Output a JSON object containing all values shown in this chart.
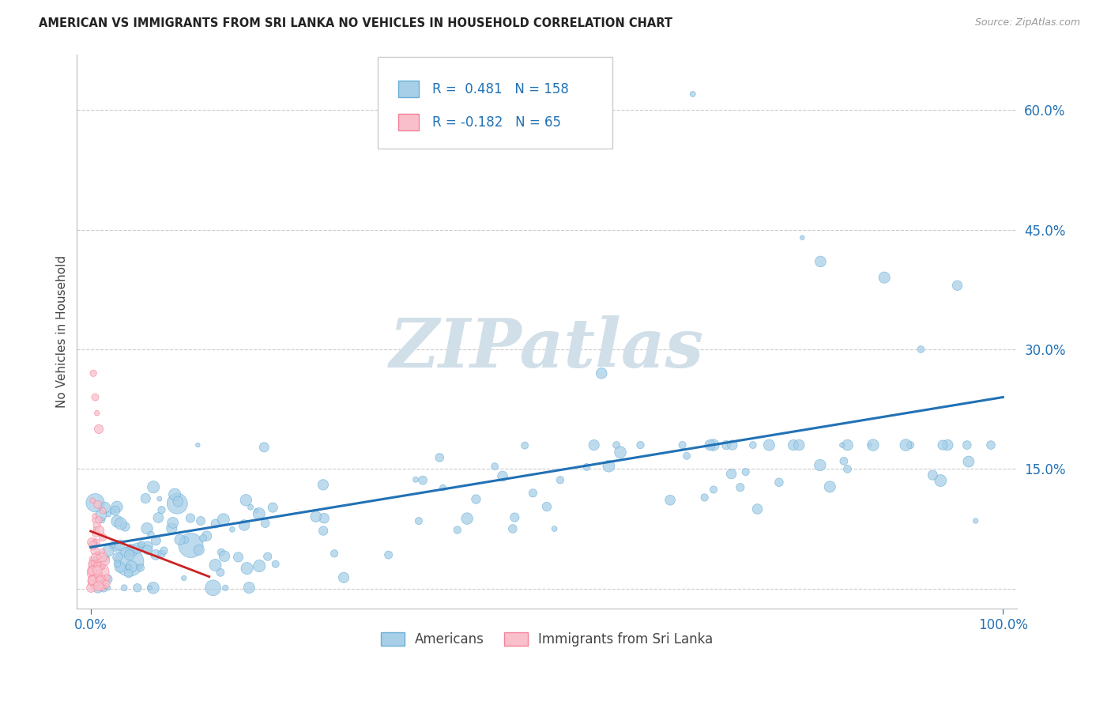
{
  "title": "AMERICAN VS IMMIGRANTS FROM SRI LANKA NO VEHICLES IN HOUSEHOLD CORRELATION CHART",
  "source": "Source: ZipAtlas.com",
  "ylabel_label": "No Vehicles in Household",
  "right_ytick_vals": [
    0.0,
    0.15,
    0.3,
    0.45,
    0.6
  ],
  "right_ytick_labels": [
    "",
    "15.0%",
    "30.0%",
    "45.0%",
    "60.0%"
  ],
  "blue_R": 0.481,
  "blue_N": 158,
  "pink_R": -0.182,
  "pink_N": 65,
  "blue_color": "#a8cfe8",
  "blue_edge_color": "#6aaed6",
  "pink_color": "#f9c0cb",
  "pink_edge_color": "#f48099",
  "blue_line_color": "#2171b5",
  "pink_line_color": "#cc2222",
  "watermark_color": "#d0dfe8",
  "background_color": "#ffffff",
  "grid_color": "#cccccc",
  "legend_label_blue": "Americans",
  "legend_label_pink": "Immigrants from Sri Lanka",
  "xlim": [
    -0.015,
    1.015
  ],
  "ylim": [
    -0.025,
    0.67
  ]
}
